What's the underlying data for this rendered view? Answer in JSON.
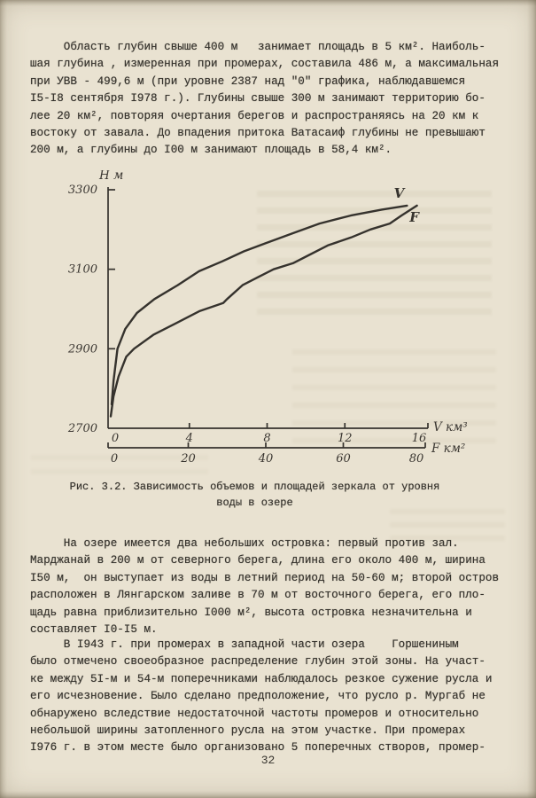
{
  "page": {
    "number": "32",
    "paper_color": "#e9e2d1",
    "ink_color": "#37342e"
  },
  "paragraphs": {
    "p1": "     Область глубин свыше 400 м   занимает площадь в 5 км². Наиболь-\nшая глубина , измеренная при промерах, составила 486 м, а максимальная\nпри УВВ - 499,6 м (при уровне 2387 над \"0\" графика, наблюдавшемся\nI5-I8 сентября I978 г.). Глубины свыше 300 м занимают территорию бо-\nлее 20 км², повторяя очертания берегов и распространяясь на 20 км к\nвостоку от завала. До впадения притока Ватасаиф глубины не превышают\n200 м, а глубины до I00 м занимают площадь в 58,4 км².",
    "p2": "     На озере имеется два небольших островка: первый против зал.\nМарджанай в 200 м от северного берега, длина его около 400 м, ширина\nI50 м,  он выступает из воды в летний период на 50-60 м; второй остров\nрасположен в Лянгарском заливе в 70 м от восточного берега, его пло-\nщадь равна приблизительно I000 м², высота островка незначительна и\nсоставляет I0-I5 м.",
    "p3": "     В I943 г. при промерах в западной части озера    Горшениным\nбыло отмечено своеобразное распределение глубин этой зоны. На участ-\nке между 5I-м и 54-м поперечниками наблюдалось резкое сужение русла и\nего исчезновение. Было сделано предположение, что русло р. Мургаб не\nобнаружено вследствие недостаточной частоты промеров и относительно\nнебольшой ширины затопленного русла на этом участке. При промерах\nI976 г. в этом месте было организовано 5 поперечных створов, промер-"
  },
  "figure": {
    "caption": "Рис. 3.2. Зависимость объемов и площадей зеркала от уровня\nводы в озере"
  },
  "chart_data": {
    "type": "line",
    "title": "Рис. 3.2. Зависимость объемов и площадей зеркала от уровня воды в озере",
    "grid": false,
    "y_axis": {
      "label": "Н м",
      "range": [
        2700,
        3300
      ],
      "ticks": [
        2700,
        2900,
        3100,
        3300
      ]
    },
    "x_axis_v": {
      "label": "V км³",
      "range": [
        0,
        16
      ],
      "ticks": [
        0,
        4,
        8,
        12,
        16
      ]
    },
    "x_axis_f": {
      "label": "F км²",
      "range": [
        0,
        80
      ],
      "ticks": [
        0,
        20,
        40,
        60,
        80
      ]
    },
    "series": [
      {
        "name": "V",
        "x_axis": "v",
        "points": [
          [
            0,
            2760
          ],
          [
            0.1,
            2820
          ],
          [
            0.3,
            2900
          ],
          [
            0.7,
            2950
          ],
          [
            1.3,
            2990
          ],
          [
            2.2,
            3025
          ],
          [
            3.4,
            3060
          ],
          [
            4.5,
            3095
          ],
          [
            5.7,
            3120
          ],
          [
            6.8,
            3145
          ],
          [
            7.9,
            3165
          ],
          [
            9.3,
            3190
          ],
          [
            10.7,
            3215
          ],
          [
            12.3,
            3235
          ],
          [
            13.9,
            3250
          ],
          [
            15.2,
            3260
          ]
        ]
      },
      {
        "name": "F",
        "x_axis": "f",
        "points": [
          [
            0,
            2730
          ],
          [
            0.7,
            2780
          ],
          [
            2,
            2830
          ],
          [
            4,
            2880
          ],
          [
            6,
            2900
          ],
          [
            11,
            2935
          ],
          [
            17,
            2965
          ],
          [
            23,
            2995
          ],
          [
            29,
            3015
          ],
          [
            30,
            3025
          ],
          [
            34,
            3060
          ],
          [
            38,
            3080
          ],
          [
            42,
            3100
          ],
          [
            47,
            3115
          ],
          [
            51,
            3135
          ],
          [
            56,
            3160
          ],
          [
            62,
            3180
          ],
          [
            67,
            3200
          ],
          [
            72,
            3215
          ],
          [
            75,
            3235
          ],
          [
            79,
            3260
          ]
        ]
      }
    ],
    "line_color": "#35322d"
  }
}
